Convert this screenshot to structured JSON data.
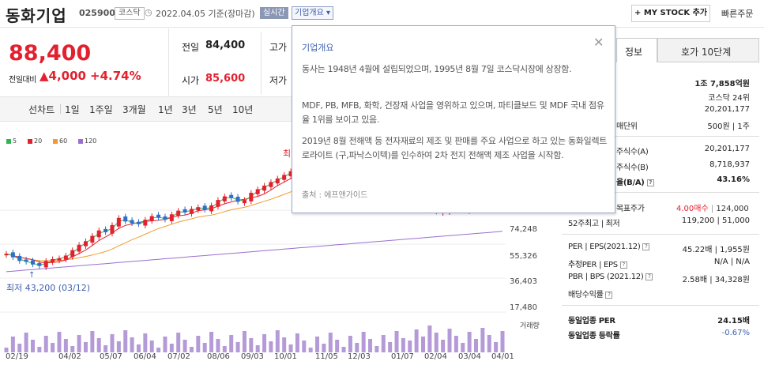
{
  "stock": {
    "name": "동화기업",
    "code": "025900",
    "market": "코스닥",
    "date": "2022.04.05",
    "basis": "기준(장마감)",
    "realtime": "실시간",
    "overview": "기업개요 ▾",
    "mystock": "+ MY STOCK 추가",
    "quick_order": "빠른주문"
  },
  "price": {
    "current": "88,400",
    "prev_label": "전일대비",
    "change": "▲4,000",
    "percent": "+4.74%"
  },
  "quote": {
    "prev_close_label": "전일",
    "prev_close": "84,400",
    "high_label": "고가",
    "open_label": "시가",
    "open": "85,600",
    "low_label": "저가"
  },
  "chart_tabs": [
    "선차트",
    "1일",
    "1주일",
    "3개월",
    "1년",
    "3년",
    "5년",
    "10년"
  ],
  "ma_legend": [
    {
      "label": "5",
      "color": "#2db84d"
    },
    {
      "label": "20",
      "color": "#e3202e"
    },
    {
      "label": "60",
      "color": "#f29a2e"
    },
    {
      "label": "120",
      "color": "#9b6fcf"
    }
  ],
  "chart_text": {
    "high_prefix": "최",
    "low_label": "최저 43,200 (03/12)",
    "volume_label": "거래량"
  },
  "chart_data": {
    "type": "candlestick",
    "y_ticks": [
      "74,248",
      "55,326",
      "36,403",
      "17,480"
    ],
    "x_ticks": [
      "02/19",
      "04/02",
      "05/07",
      "06/04",
      "07/02",
      "08/06",
      "09/03",
      "10/01",
      "11/05",
      "12/03",
      "01/07",
      "02/04",
      "03/04",
      "04/01"
    ],
    "close_approx": [
      50000,
      48000,
      46000,
      45500,
      44000,
      43200,
      46000,
      47000,
      47500,
      49000,
      52000,
      55000,
      57000,
      60000,
      63000,
      62000,
      66000,
      70000,
      68000,
      67000,
      66500,
      69000,
      71000,
      70000,
      69000,
      72000,
      74000,
      73000,
      75000,
      76000,
      74500,
      77000,
      80000,
      82000,
      81000,
      79000,
      80000,
      84000,
      86000,
      88000,
      90000,
      92000,
      94000,
      96000,
      95000,
      96000,
      95500,
      96000,
      97000,
      98000,
      97000,
      96500,
      96000,
      95500,
      95000,
      94000,
      93000,
      92000,
      90000,
      88000,
      85000,
      84000,
      78000,
      75000,
      74000,
      73500,
      74000,
      75500,
      76000,
      74500,
      75000,
      76000,
      78000,
      82000,
      84000,
      88400
    ]
  },
  "popup": {
    "title": "기업개요",
    "close": "✕",
    "p1": "동사는 1948년 4월에 설립되었으며, 1995년 8월 7일 코스닥시장에 상장함.",
    "p2": "MDF, PB, MFB, 화학, 건장재 사업을 영위하고 있으며, 파티클보드 및 MDF 국내 점유율 1위를 보이고 있음.",
    "p3": "2019년 8월 전해액 등 전자재료의 제조 및 판매를 주요 사업으로 하고 있는 동화일렉트로라이트 (구,파낙스이텍)를 인수하여 2차 전지 전해액 제조 사업을 시작함.",
    "source": "출처 : 에프앤가이드"
  },
  "right": {
    "tab_info": "정보",
    "tab_order": "호가 10단계",
    "market_cap": "1조 7,858억원",
    "rank": "코스닥 24위",
    "shares": "20,201,177",
    "unit_label": "매단위",
    "unit": "500원 | 1주",
    "foreign_limit_label": "주식수(A)",
    "foreign_limit": "20,201,177",
    "foreign_own_label": "주식수(B)",
    "foreign_own": "8,718,937",
    "foreign_ratio_label": "율(B/A)",
    "foreign_ratio": "43.16%",
    "target_label": "목표주가",
    "target_op": "4.00매수",
    "target": "124,000",
    "wk52_label": "52주최고 | 최저",
    "wk52": "119,200 | 51,000",
    "per_label": "PER | EPS(2021.12)",
    "per": "45.22배 | 1,955원",
    "eper_label": "추정PER | EPS",
    "eper": "N/A | N/A",
    "pbr_label": "PBR | BPS (2021.12)",
    "pbr": "2.58배 | 34,328원",
    "div_label": "배당수익률",
    "ind_per_label": "동일업종 PER",
    "ind_per": "24.15배",
    "ind_rate_label": "동일업종 등락률",
    "ind_rate": "-0.67%"
  }
}
